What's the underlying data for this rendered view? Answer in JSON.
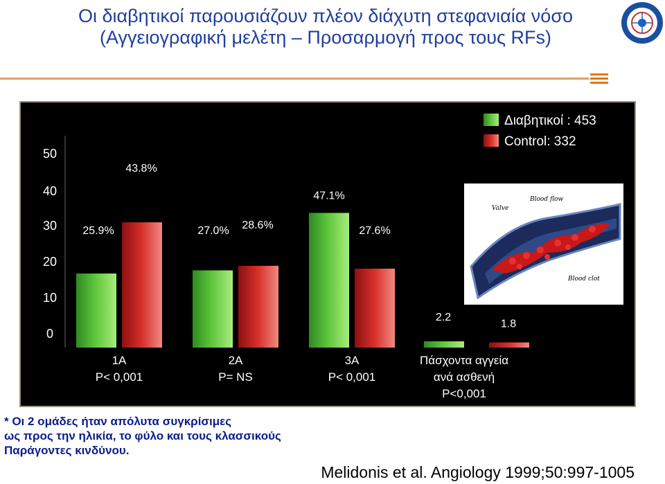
{
  "title_line1": "Οι διαβητικοί παρουσιάζουν πλέον διάχυτη στεφανιαία νόσο",
  "title_line2": "(Αγγειογραφική μελέτη – Προσαρμογή προς τους RFs)",
  "note": "* Οι 2 ομάδες ήταν απόλυτα συγκρίσιμες\nως προς την ηλικία, το φύλο και τους κλασσικούς\nΠαράγοντες κινδύνου.",
  "citation": "Melidonis et al. Angiology  1999;50:997-1005",
  "image_labels": {
    "valve": "Valve",
    "blood_flow": "Blood flow",
    "blood_clot": "Blood clot"
  },
  "colors": {
    "diabetic": "#5cc43a",
    "control": "#d8302c",
    "text": "#ffffff",
    "title": "#1f3f9f"
  },
  "chart_data": {
    "type": "bar",
    "y_ticks": [
      "50",
      "40",
      "30",
      "20",
      "10",
      "0"
    ],
    "groups": [
      {
        "label_line1": "1A",
        "label_line2": "P< 0,001",
        "diabetic": 25.9,
        "control": 43.8,
        "diabetic_label": "25.9%",
        "control_label": "43.8%"
      },
      {
        "label_line1": "2A",
        "label_line2": "P= NS",
        "diabetic": 27.0,
        "control": 28.6,
        "diabetic_label": "27.0%",
        "control_label": "28.6%"
      },
      {
        "label_line1": "3A",
        "label_line2": "P< 0,001",
        "diabetic": 47.1,
        "control": 27.6,
        "diabetic_label": "47.1%",
        "control_label": "27.6%"
      },
      {
        "label_line1": "Πάσχοντα αγγεία",
        "label_line2": "ανά ασθενή",
        "label_line3": "P<0,001",
        "diabetic": 2.2,
        "control": 1.8,
        "diabetic_label": "2.2",
        "control_label": "1.8"
      }
    ],
    "legend": [
      {
        "name": "Διαβητικοί : 453",
        "color": "#5cc43a"
      },
      {
        "name": "Control: 332",
        "color": "#d8302c"
      }
    ]
  }
}
